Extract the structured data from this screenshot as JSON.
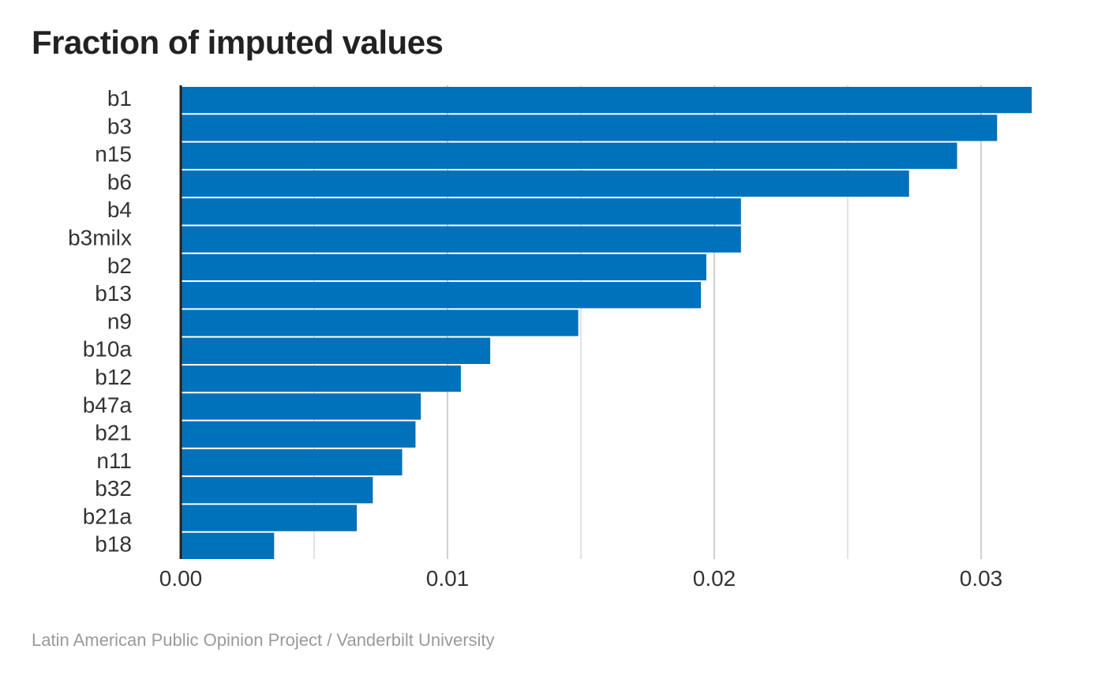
{
  "colors": {
    "bar": "#0071bb",
    "grid": "#d0d0d0",
    "axis": "#222222",
    "text": "#333333",
    "caption": "#9a9a9a"
  },
  "chart_data": {
    "type": "bar",
    "orientation": "horizontal",
    "title": "Fraction of imputed values",
    "xlabel": "",
    "ylabel": "",
    "categories": [
      "b1",
      "b3",
      "n15",
      "b6",
      "b4",
      "b3milx",
      "b2",
      "b13",
      "n9",
      "b10a",
      "b12",
      "b47a",
      "b21",
      "n11",
      "b32",
      "b21a",
      "b18"
    ],
    "values": [
      0.0319,
      0.0306,
      0.0291,
      0.0273,
      0.021,
      0.021,
      0.0197,
      0.0195,
      0.0149,
      0.0116,
      0.0105,
      0.009,
      0.0088,
      0.0083,
      0.0072,
      0.0066,
      0.0035
    ],
    "xlim": [
      0,
      0.0325
    ],
    "xticks": [
      0.0,
      0.01,
      0.02,
      0.03
    ],
    "xtick_labels": [
      "0.00",
      "0.01",
      "0.02",
      "0.03"
    ],
    "grid": true
  },
  "caption": "Latin American Public Opinion Project / Vanderbilt University"
}
